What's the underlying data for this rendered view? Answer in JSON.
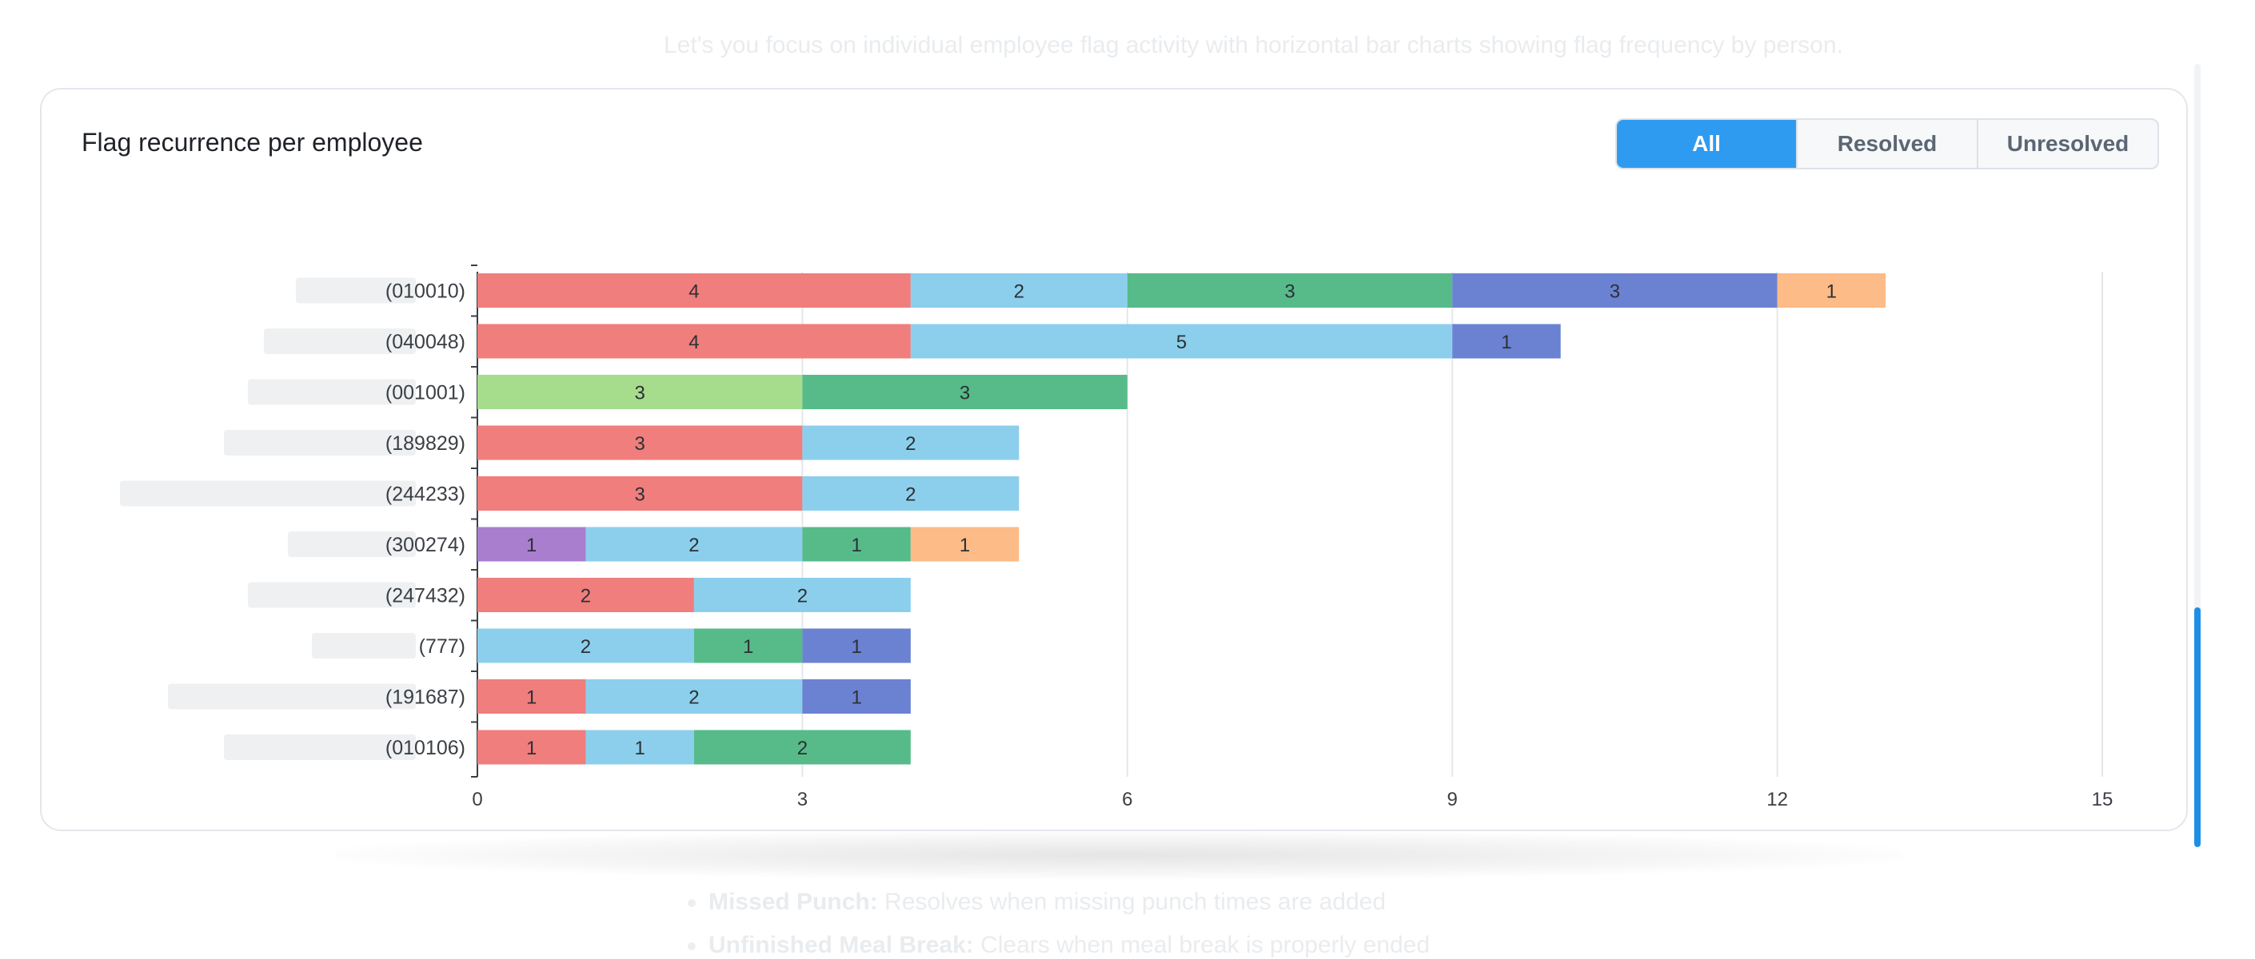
{
  "background": {
    "description_text": "Let's you focus on individual employee flag activity with horizontal bar charts showing flag frequency by person.",
    "list_items": [
      {
        "term": "Missed Punch:",
        "text": " Resolves when missing punch times are added"
      },
      {
        "term": "Unfinished Meal Break:",
        "text": " Clears when meal break is properly ended"
      }
    ]
  },
  "card": {
    "title": "Flag recurrence per employee",
    "filters": {
      "all": "All",
      "resolved": "Resolved",
      "unresolved": "Unresolved",
      "selected": "All"
    }
  },
  "colors": {
    "accent": "#2f9bf0",
    "scroll_thumb": "#1f8fe6"
  },
  "chart_data": {
    "type": "bar",
    "orientation": "horizontal",
    "stacked": true,
    "xlim": [
      0,
      15
    ],
    "x_ticks": [
      0,
      3,
      6,
      9,
      12,
      15
    ],
    "grid": true,
    "categories": [
      "(010010)",
      "(040048)",
      "(001001)",
      "(189829)",
      "(244233)",
      "(300274)",
      "(247432)",
      "(777)",
      "(191687)",
      "(010106)"
    ],
    "series": [
      {
        "color": "#f07e7c",
        "values": [
          4,
          4,
          0,
          3,
          3,
          0,
          2,
          0,
          1,
          1
        ]
      },
      {
        "color": "#aa7ecf",
        "values": [
          0,
          0,
          0,
          0,
          0,
          1,
          0,
          0,
          0,
          0
        ]
      },
      {
        "color": "#a6dd8d",
        "values": [
          0,
          0,
          3,
          0,
          0,
          0,
          0,
          0,
          0,
          0
        ]
      },
      {
        "color": "#8ccfec",
        "values": [
          2,
          5,
          0,
          2,
          2,
          2,
          2,
          2,
          2,
          1
        ]
      },
      {
        "color": "#57bb89",
        "values": [
          3,
          0,
          3,
          0,
          0,
          1,
          0,
          1,
          0,
          2
        ]
      },
      {
        "color": "#6b82d2",
        "values": [
          3,
          1,
          0,
          0,
          0,
          0,
          0,
          1,
          1,
          0
        ]
      },
      {
        "color": "#fdbb87",
        "values": [
          1,
          0,
          0,
          0,
          0,
          1,
          0,
          0,
          0,
          0
        ]
      }
    ]
  }
}
